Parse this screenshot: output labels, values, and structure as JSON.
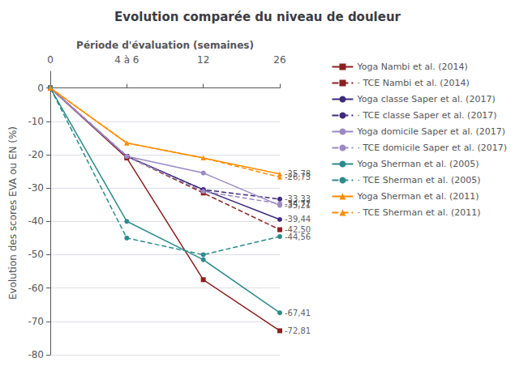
{
  "chart_data": {
    "type": "line",
    "title": "Evolution comparée du niveau de douleur",
    "xlabel": "Période d'évaluation (semaines)",
    "ylabel": "Evolution des scores EVA ou EN (%)",
    "categories": [
      "0",
      "4 à 6",
      "12",
      "26"
    ],
    "ylim": [
      -80,
      5
    ],
    "yticks": [
      0,
      -10,
      -20,
      -30,
      -40,
      -50,
      -60,
      -70,
      -80
    ],
    "grid": true,
    "legend": "right",
    "series": [
      {
        "name": "Yoga Nambi et al. (2014)",
        "color": "#8B2020",
        "line_style": "solid",
        "marker": "square",
        "values": [
          0,
          -21.0,
          -57.5,
          -72.81
        ]
      },
      {
        "name": "· TCE Nambi et al. (2014)",
        "color": "#8B2020",
        "line_style": "dashed",
        "marker": "square",
        "values": [
          0,
          -20.5,
          -31.5,
          -42.5
        ]
      },
      {
        "name": "Yoga classe Saper et al. (2017)",
        "color": "#3D2A7A",
        "line_style": "solid",
        "marker": "circle",
        "values": [
          0,
          -20.5,
          -30.5,
          -39.44
        ]
      },
      {
        "name": "· TCE classe Saper et al. (2017)",
        "color": "#3D2A7A",
        "line_style": "dashed",
        "marker": "circle",
        "values": [
          0,
          -20.5,
          -30.5,
          -33.33
        ]
      },
      {
        "name": "Yoga domicile Saper et al. (2017)",
        "color": "#9B89C4",
        "line_style": "solid",
        "marker": "circle",
        "values": [
          0,
          -20.5,
          -25.5,
          -35.21
        ]
      },
      {
        "name": "· TCE domicile Saper et al. (2017)",
        "color": "#9B89C4",
        "line_style": "dashed",
        "marker": "circle",
        "values": [
          0,
          -20.5,
          -31.0,
          -34.72
        ]
      },
      {
        "name": "Yoga Sherman et al. (2005)",
        "color": "#2E8B8B",
        "line_style": "solid",
        "marker": "circle",
        "values": [
          0,
          -40.0,
          -51.5,
          -67.41
        ]
      },
      {
        "name": "· TCE Sherman et al. (2005)",
        "color": "#2E8B8B",
        "line_style": "dashed",
        "marker": "circle",
        "values": [
          0,
          -45.0,
          -50.0,
          -44.56
        ]
      },
      {
        "name": "Yoga Sherman et al. (2011)",
        "color": "#FF8C00",
        "line_style": "solid",
        "marker": "triangle",
        "values": [
          0,
          -16.5,
          -21.0,
          -25.78
        ]
      },
      {
        "name": "· TCE Sherman et al. (2011)",
        "color": "#FF8C00",
        "line_style": "dashed",
        "marker": "triangle",
        "values": [
          0,
          -16.5,
          -21.0,
          -26.73
        ]
      }
    ],
    "annotations": [
      {
        "category": "26",
        "y": -25.78,
        "text": "-25,78"
      },
      {
        "category": "26",
        "y": -26.73,
        "text": "-26,73"
      },
      {
        "category": "26",
        "y": -33.33,
        "text": "-33,33"
      },
      {
        "category": "26",
        "y": -34.72,
        "text": "-34,72"
      },
      {
        "category": "26",
        "y": -35.21,
        "text": "-35,21"
      },
      {
        "category": "26",
        "y": -39.44,
        "text": "-39,44"
      },
      {
        "category": "26",
        "y": -42.5,
        "text": "-42,50"
      },
      {
        "category": "26",
        "y": -44.56,
        "text": "-44,56"
      },
      {
        "category": "26",
        "y": -67.41,
        "text": "-67,41"
      },
      {
        "category": "26",
        "y": -72.81,
        "text": "-72,81"
      }
    ]
  }
}
